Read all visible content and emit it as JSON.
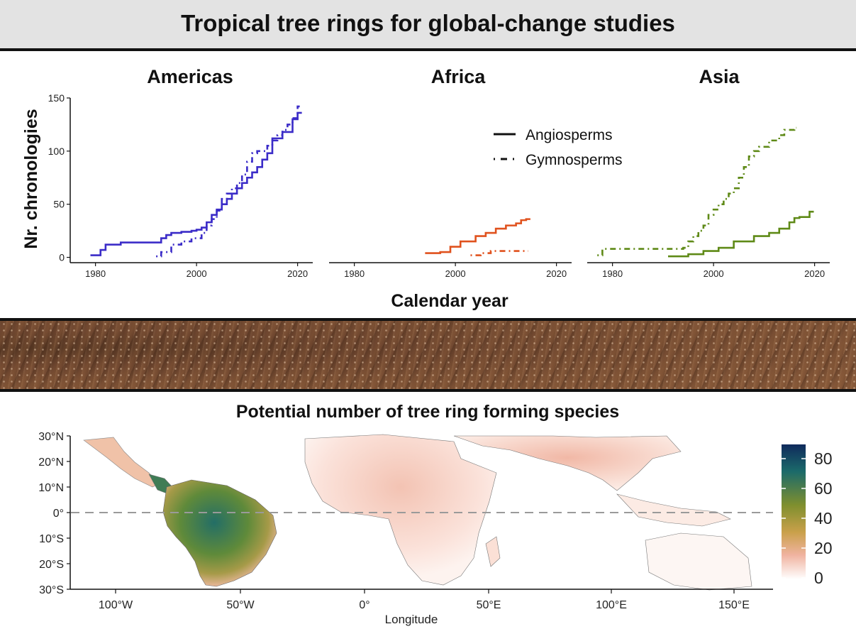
{
  "banner": {
    "title": "Tropical tree rings for global-change studies"
  },
  "legend": {
    "items": [
      {
        "label": "Angiosperms",
        "style": "solid"
      },
      {
        "label": "Gymnosperms",
        "style": "dashdot"
      }
    ]
  },
  "axes": {
    "ylabel": "Nr. chronologies",
    "xlabel": "Calendar year",
    "yticks": [
      "0",
      "50",
      "100",
      "150"
    ],
    "xticks": [
      "1980",
      "2000",
      "2020"
    ]
  },
  "panels": [
    {
      "title": "Americas",
      "color": "#3b2cc8"
    },
    {
      "title": "Africa",
      "color": "#e0521e"
    },
    {
      "title": "Asia",
      "color": "#5f8a17"
    }
  ],
  "map": {
    "title": "Potential number of tree ring forming species",
    "xlabel": "Longitude",
    "lat_ticks": [
      "30°N",
      "20°N",
      "10°N",
      "0°",
      "10°S",
      "20°S",
      "30°S"
    ],
    "lon_ticks": [
      "100°W",
      "50°W",
      "0°",
      "50°E",
      "100°E",
      "150°E"
    ],
    "colorbar": {
      "ticks": [
        "80",
        "60",
        "40",
        "20",
        "0"
      ],
      "colors": [
        "#0f2a5c",
        "#1b6a6a",
        "#7f8f2e",
        "#c9a04a",
        "#f0b3a0",
        "#ffffff"
      ]
    }
  },
  "chart_data": [
    {
      "type": "line",
      "panel": "Americas",
      "title": "Americas",
      "xlabel": "Calendar year",
      "ylabel": "Nr. chronologies",
      "xlim": [
        1975,
        2023
      ],
      "ylim": [
        -5,
        150
      ],
      "series": [
        {
          "name": "Angiosperms",
          "style": "step-solid",
          "x": [
            1979,
            1981,
            1982,
            1985,
            1992,
            1993,
            1994,
            1995,
            1997,
            1999,
            2000,
            2001,
            2002,
            2003,
            2004,
            2005,
            2006,
            2007,
            2008,
            2009,
            2010,
            2011,
            2012,
            2013,
            2014,
            2015,
            2017,
            2019,
            2020
          ],
          "y": [
            2,
            7,
            12,
            14,
            14,
            18,
            21,
            23,
            24,
            25,
            26,
            28,
            33,
            40,
            45,
            50,
            55,
            60,
            65,
            70,
            75,
            80,
            85,
            92,
            98,
            112,
            118,
            130,
            136
          ]
        },
        {
          "name": "Gymnosperms",
          "style": "step-dashdot",
          "x": [
            1992,
            1993,
            1995,
            1997,
            1999,
            2001,
            2002,
            2003,
            2004,
            2005,
            2006,
            2007,
            2008,
            2009,
            2010,
            2011,
            2012,
            2014,
            2015,
            2016,
            2017,
            2018,
            2019,
            2020
          ],
          "y": [
            1,
            5,
            12,
            15,
            18,
            23,
            30,
            36,
            44,
            55,
            60,
            65,
            70,
            78,
            90,
            98,
            100,
            105,
            110,
            115,
            120,
            125,
            131,
            142
          ]
        }
      ]
    },
    {
      "type": "line",
      "panel": "Africa",
      "title": "Africa",
      "xlim": [
        1975,
        2023
      ],
      "ylim": [
        -5,
        150
      ],
      "series": [
        {
          "name": "Angiosperms",
          "style": "step-solid",
          "x": [
            1994,
            1997,
            1999,
            2001,
            2004,
            2006,
            2008,
            2010,
            2012,
            2013,
            2014
          ],
          "y": [
            4,
            5,
            10,
            15,
            20,
            23,
            27,
            30,
            32,
            35,
            36
          ]
        },
        {
          "name": "Gymnosperms",
          "style": "step-dashdot",
          "x": [
            2003,
            2005,
            2007,
            2010,
            2014
          ],
          "y": [
            2,
            4,
            6,
            6,
            6
          ]
        }
      ]
    },
    {
      "type": "line",
      "panel": "Asia",
      "title": "Asia",
      "xlim": [
        1975,
        2023
      ],
      "ylim": [
        -5,
        150
      ],
      "series": [
        {
          "name": "Angiosperms",
          "style": "step-solid",
          "x": [
            1991,
            1995,
            1998,
            2001,
            2004,
            2008,
            2011,
            2013,
            2015,
            2016,
            2017,
            2019
          ],
          "y": [
            1,
            3,
            6,
            9,
            15,
            20,
            23,
            27,
            33,
            37,
            38,
            43
          ]
        },
        {
          "name": "Gymnosperms",
          "style": "step-dashdot",
          "x": [
            1977,
            1978,
            1994,
            1995,
            1996,
            1997,
            1998,
            1999,
            2000,
            2001,
            2002,
            2003,
            2004,
            2005,
            2006,
            2007,
            2008,
            2009,
            2011,
            2013,
            2014,
            2016
          ],
          "y": [
            2,
            8,
            9,
            15,
            20,
            25,
            30,
            40,
            45,
            50,
            55,
            60,
            65,
            75,
            85,
            95,
            100,
            104,
            110,
            115,
            120,
            122
          ]
        }
      ]
    }
  ]
}
